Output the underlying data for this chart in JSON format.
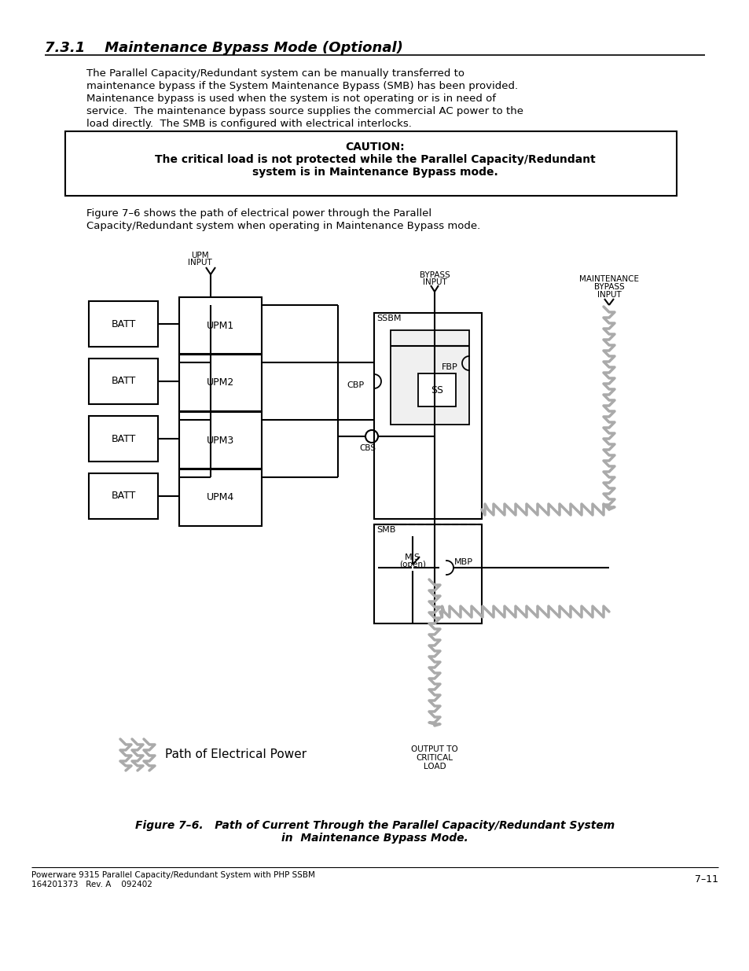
{
  "title": "7.3.1    Maintenance Bypass Mode (Optional)",
  "body_text": [
    "The Parallel Capacity/Redundant system can be manually transferred to",
    "maintenance bypass if the System Maintenance Bypass (SMB) has been provided.",
    "Maintenance bypass is used when the system is not operating or is in need of",
    "service.  The maintenance bypass source supplies the commercial AC power to the",
    "load directly.  The SMB is configured with electrical interlocks."
  ],
  "caution_line1": "CAUTION:",
  "caution_line2": "The critical load is not protected while the Parallel Capacity/Redundant",
  "caution_line3": "system is in Maintenance Bypass mode.",
  "footer_left1": "Powerware 9315 Parallel Capacity/Redundant System with PHP SSBM",
  "footer_left2": "164201373   Rev. A    092402",
  "footer_right": "7–11",
  "bg_color": "#ffffff",
  "text_color": "#000000"
}
